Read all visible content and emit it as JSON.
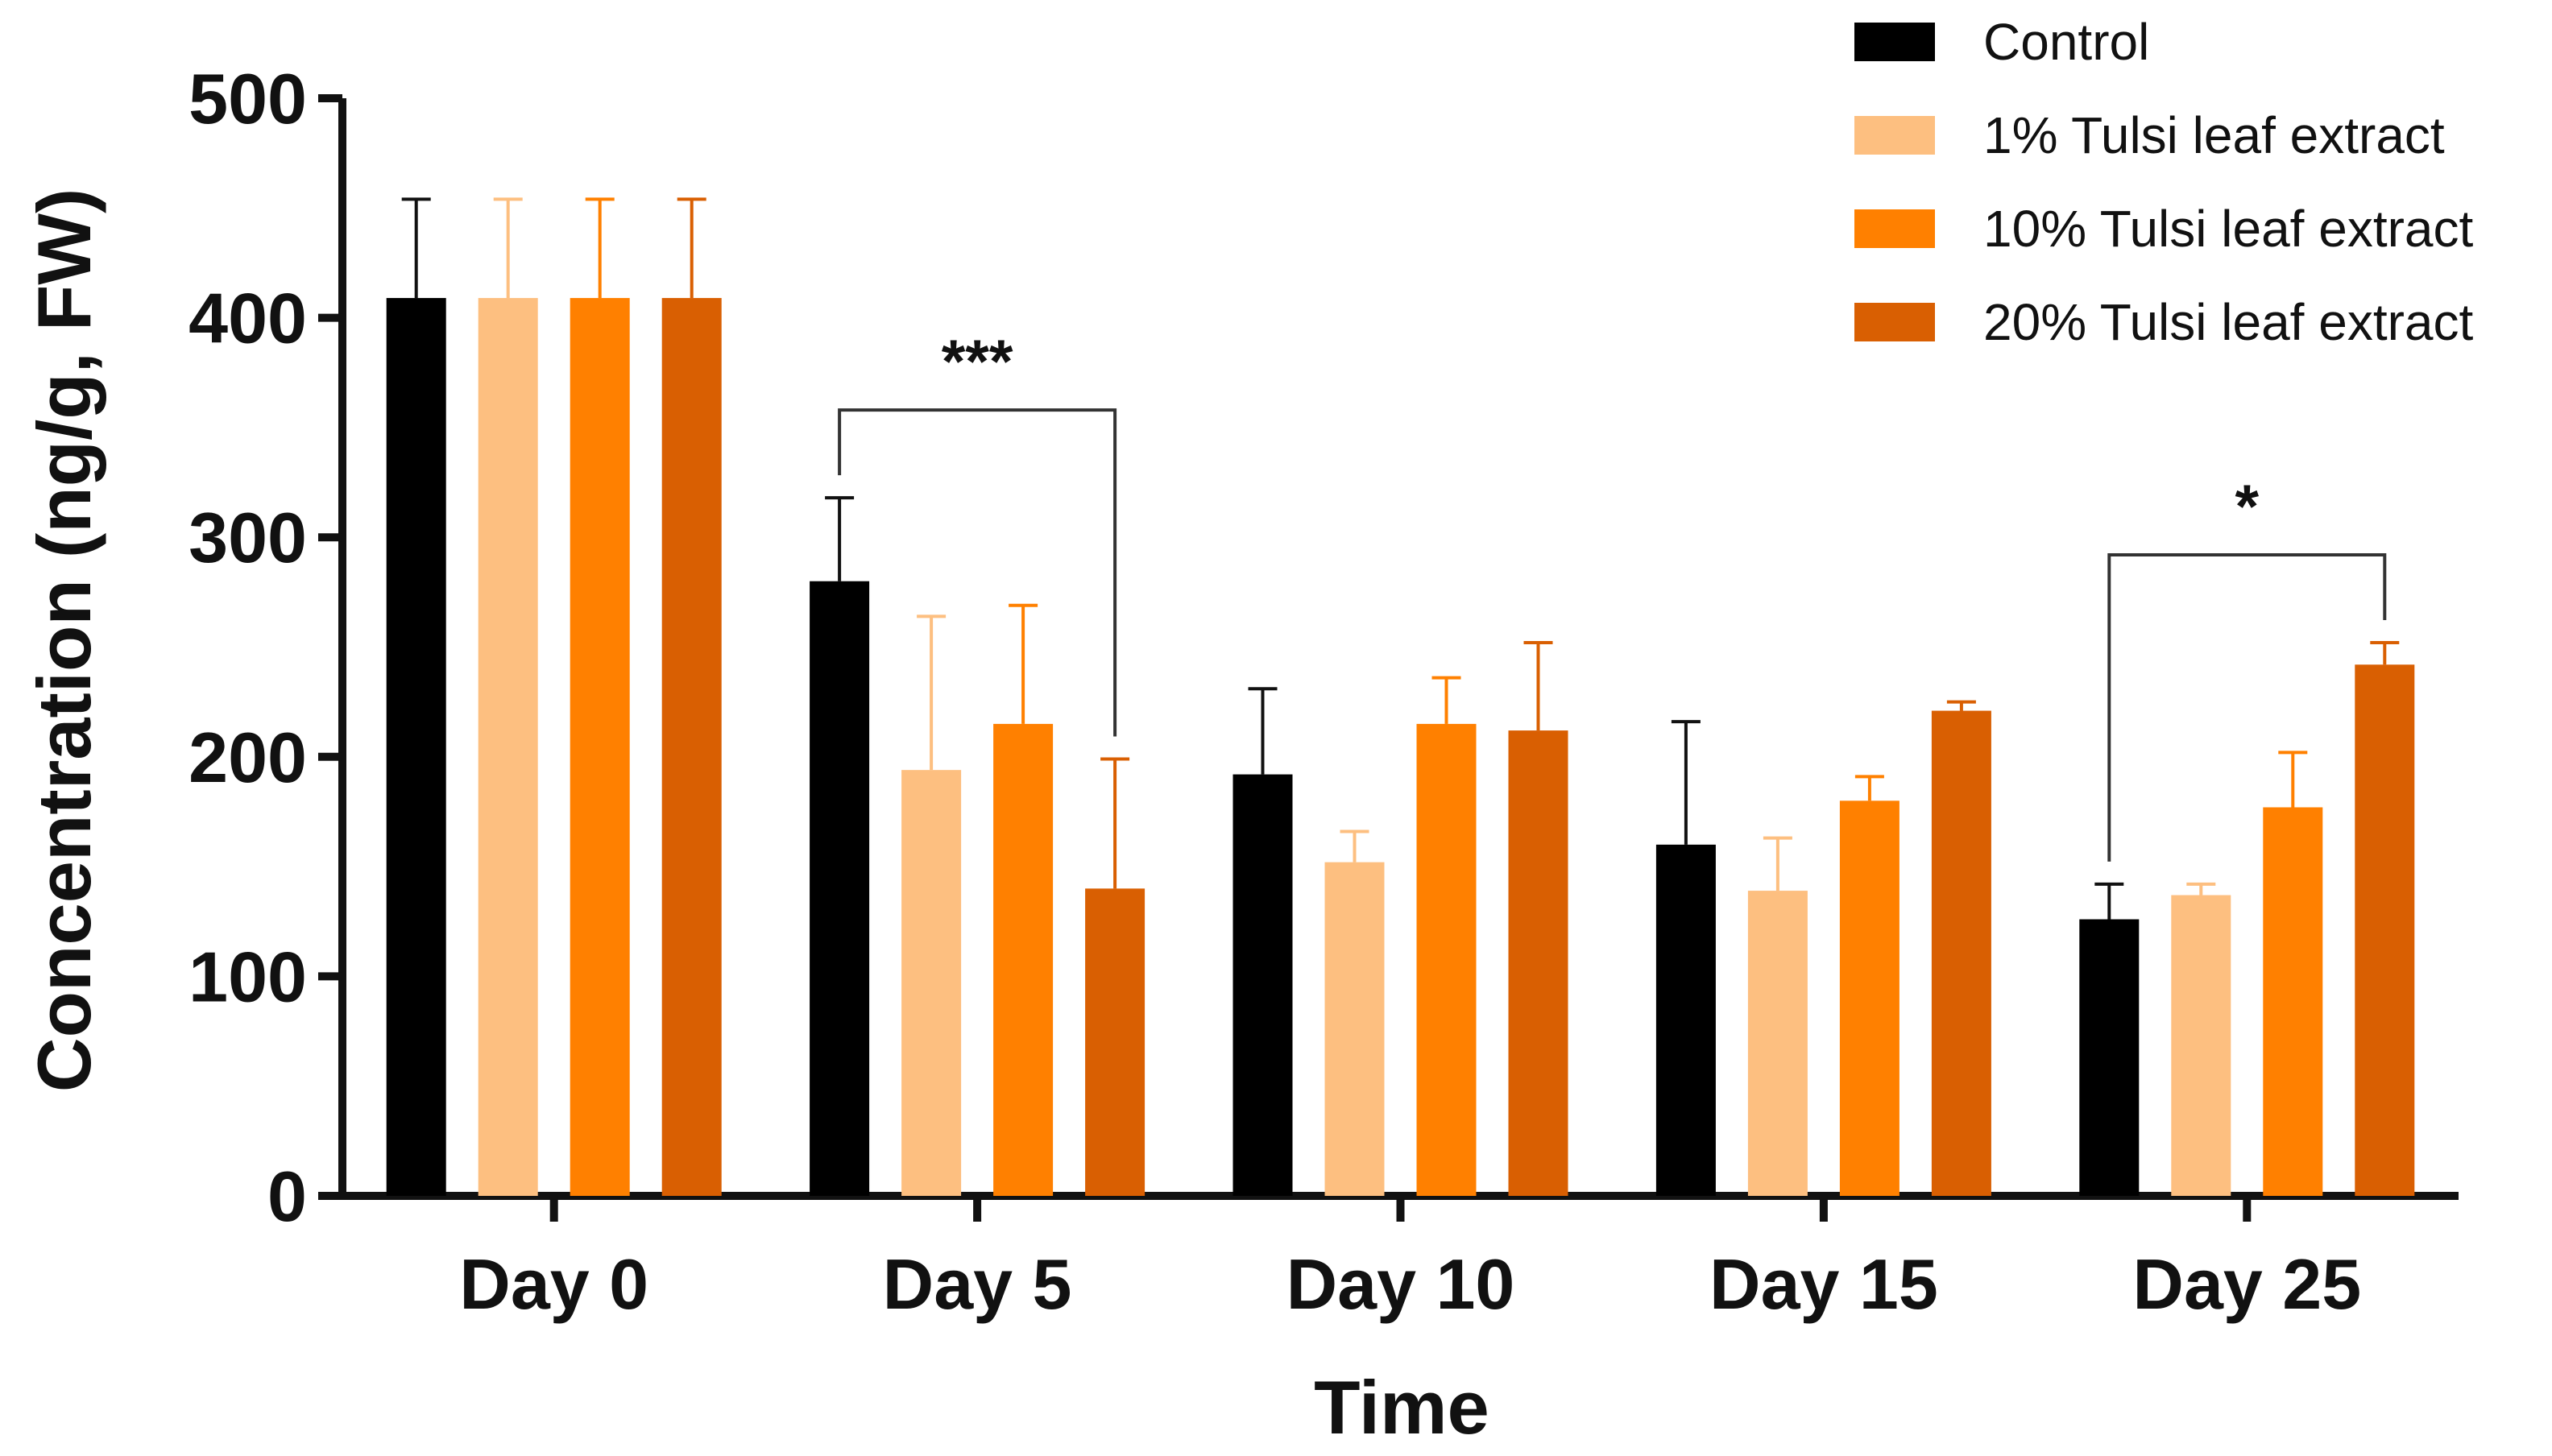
{
  "chart_data": {
    "type": "bar",
    "title": "",
    "xlabel": "Time",
    "ylabel": "Concentration (ng/g, FW)",
    "ylim": [
      0,
      500
    ],
    "yticks": [
      0,
      100,
      200,
      300,
      400,
      500
    ],
    "categories": [
      "Day 0",
      "Day 5",
      "Day 10",
      "Day 15",
      "Day 25"
    ],
    "series": [
      {
        "name": "Control",
        "color": "#000000",
        "values": [
          409,
          280,
          192,
          160,
          126
        ],
        "errors": [
          45,
          38,
          39,
          56,
          16
        ]
      },
      {
        "name": "1% Tulsi leaf extract",
        "color": "#FDBF80",
        "values": [
          409,
          194,
          152,
          139,
          137
        ],
        "errors": [
          45,
          70,
          14,
          24,
          5
        ]
      },
      {
        "name": "10% Tulsi leaf extract",
        "color": "#FF8000",
        "values": [
          409,
          215,
          215,
          180,
          177
        ],
        "errors": [
          45,
          54,
          21,
          11,
          25
        ]
      },
      {
        "name": "20% Tulsi leaf extract",
        "color": "#D95F02",
        "values": [
          409,
          140,
          212,
          221,
          242
        ],
        "errors": [
          45,
          59,
          40,
          4,
          10
        ]
      }
    ],
    "annotations": [
      {
        "label": "***",
        "category_index": 1,
        "from_series": 0,
        "to_series": 3,
        "y": 358
      },
      {
        "label": "*",
        "category_index": 4,
        "from_series": 0,
        "to_series": 3,
        "y": 292
      }
    ],
    "legend_position": "top-right"
  }
}
